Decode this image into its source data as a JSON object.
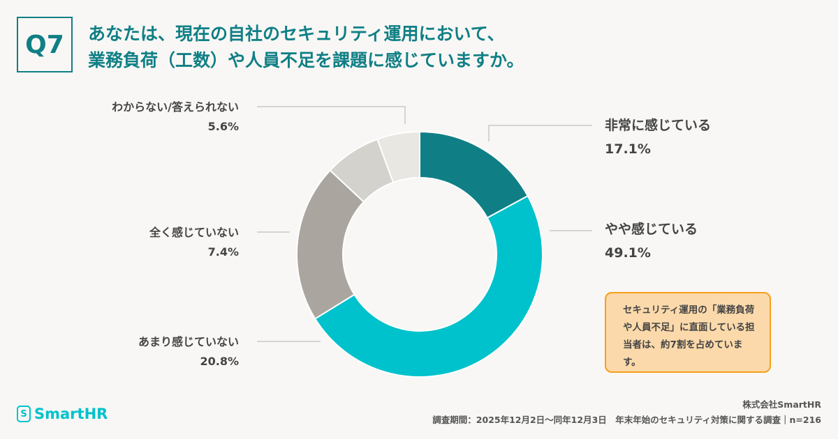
{
  "question": {
    "number": "Q7",
    "title_line1": "あなたは、現在の自社のセキュリティ運用において、",
    "title_line2": "業務負荷（工数）や人員不足を課題に感じていますか。"
  },
  "chart_data": {
    "type": "pie",
    "style": "donut",
    "categories": [
      "非常に感じている",
      "やや感じている",
      "あまり感じていない",
      "全く感じていない",
      "わからない/答えられない"
    ],
    "values": [
      17.1,
      49.1,
      20.8,
      7.4,
      5.6
    ],
    "labels": [
      "17.1%",
      "49.1%",
      "20.8%",
      "7.4%",
      "5.6%"
    ],
    "colors": [
      "#0f7f85",
      "#00c2cc",
      "#aaa59f",
      "#d4d2cd",
      "#e9e7e2"
    ]
  },
  "note": "セキュリティ運用の「業務負荷や人員不足」に直面している担当者は、約7割を占めています。",
  "logo": {
    "icon": "S",
    "text": "SmartHR"
  },
  "footer": {
    "company": "株式会社SmartHR",
    "survey": "調査期間：2025年12月2日〜同年12月3日　年末年始のセキュリティ対策に関する調査｜n=216"
  }
}
